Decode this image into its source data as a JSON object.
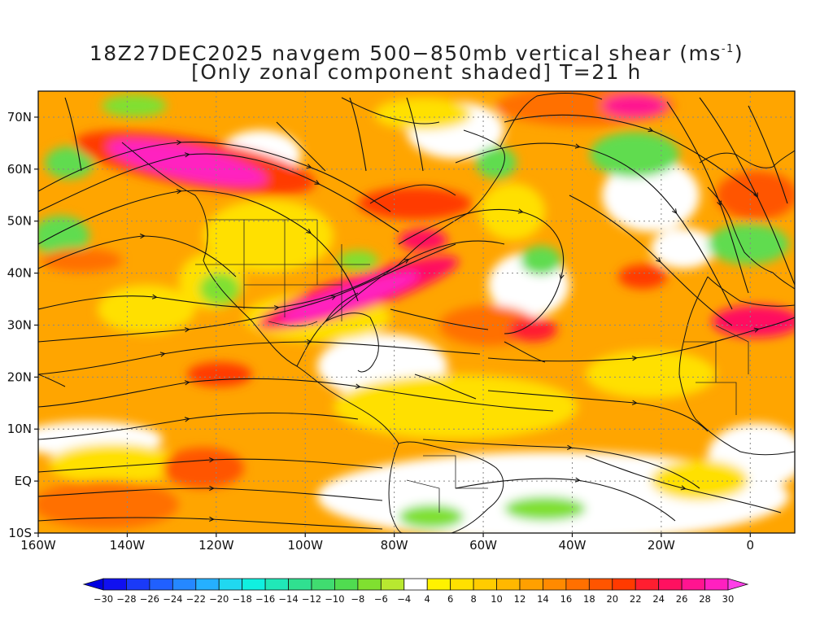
{
  "title": {
    "line1_prefix": "18Z27DEC2025 navgem 500−850mb vertical shear (ms",
    "line1_sup": "-1",
    "line1_suffix": ")",
    "line2": "[Only zonal component shaded] T=21 h"
  },
  "map": {
    "lon_range": [
      -160,
      10
    ],
    "lat_range": [
      -10,
      75
    ],
    "lat_labels": [
      "70N",
      "60N",
      "50N",
      "40N",
      "30N",
      "20N",
      "10N",
      "EQ",
      "10S"
    ],
    "lon_labels": [
      "160W",
      "140W",
      "120W",
      "100W",
      "80W",
      "60W",
      "40W",
      "20W",
      "0"
    ],
    "gridlines": "dotted",
    "overlays": [
      "coastlines",
      "political-boundaries",
      "streamlines"
    ]
  },
  "colorbar": {
    "labels": [
      "-30",
      "-28",
      "-26",
      "-24",
      "-22",
      "-20",
      "-18",
      "-16",
      "-14",
      "-12",
      "-10",
      "-8",
      "-6",
      "-4",
      "4",
      "6",
      "8",
      "10",
      "12",
      "14",
      "16",
      "18",
      "20",
      "22",
      "24",
      "26",
      "28",
      "30"
    ],
    "colors": [
      "#1010f0",
      "#1a3af8",
      "#2060ff",
      "#2588ff",
      "#25b0ff",
      "#20d8f0",
      "#10f0e0",
      "#20e8b8",
      "#30e090",
      "#40dc70",
      "#50dc50",
      "#80e030",
      "#b8e830",
      "#ffffff",
      "#fff200",
      "#ffe000",
      "#ffcc00",
      "#ffb800",
      "#ffa000",
      "#ff8a00",
      "#ff7000",
      "#ff5500",
      "#ff3a00",
      "#ff1e30",
      "#ff1060",
      "#ff1490",
      "#ff20c0"
    ],
    "under_color": "#0000e0",
    "over_color": "#ff40e8"
  }
}
